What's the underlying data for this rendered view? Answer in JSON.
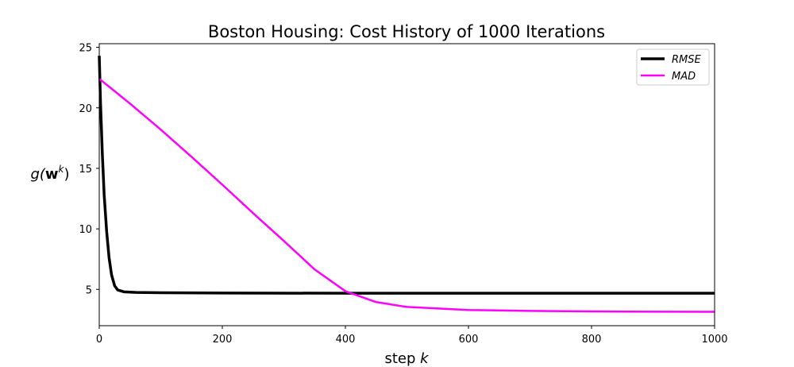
{
  "chart_data": {
    "type": "line",
    "title": "Boston Housing: Cost History of 1000 Iterations",
    "xlabel_text": "step",
    "xlabel_var": "k",
    "ylabel": {
      "g": "g(",
      "w": "w",
      "k": "k",
      "close": ")"
    },
    "xlim": [
      0,
      1000
    ],
    "ylim": [
      2.0,
      25.3
    ],
    "xticks": [
      0,
      200,
      400,
      600,
      800,
      1000
    ],
    "yticks": [
      5,
      10,
      15,
      20,
      25
    ],
    "grid": false,
    "legend_position": "top-right",
    "series": [
      {
        "name": "RMSE",
        "color": "#000000",
        "line_width": 3.5,
        "points": [
          [
            0,
            24.3
          ],
          [
            2,
            20.5
          ],
          [
            5,
            16.2
          ],
          [
            8,
            12.8
          ],
          [
            12,
            9.8
          ],
          [
            16,
            7.6
          ],
          [
            20,
            6.2
          ],
          [
            25,
            5.3
          ],
          [
            30,
            4.95
          ],
          [
            40,
            4.8
          ],
          [
            60,
            4.75
          ],
          [
            100,
            4.72
          ],
          [
            200,
            4.7
          ],
          [
            400,
            4.68
          ],
          [
            600,
            4.68
          ],
          [
            800,
            4.68
          ],
          [
            1000,
            4.68
          ]
        ]
      },
      {
        "name": "MAD",
        "color": "#ff00ff",
        "line_width": 2.5,
        "points": [
          [
            0,
            22.4
          ],
          [
            50,
            20.35
          ],
          [
            100,
            18.2
          ],
          [
            150,
            15.95
          ],
          [
            200,
            13.65
          ],
          [
            250,
            11.3
          ],
          [
            300,
            9.0
          ],
          [
            350,
            6.65
          ],
          [
            400,
            4.85
          ],
          [
            450,
            3.95
          ],
          [
            500,
            3.55
          ],
          [
            600,
            3.3
          ],
          [
            700,
            3.22
          ],
          [
            800,
            3.18
          ],
          [
            900,
            3.16
          ],
          [
            1000,
            3.15
          ]
        ]
      }
    ]
  }
}
